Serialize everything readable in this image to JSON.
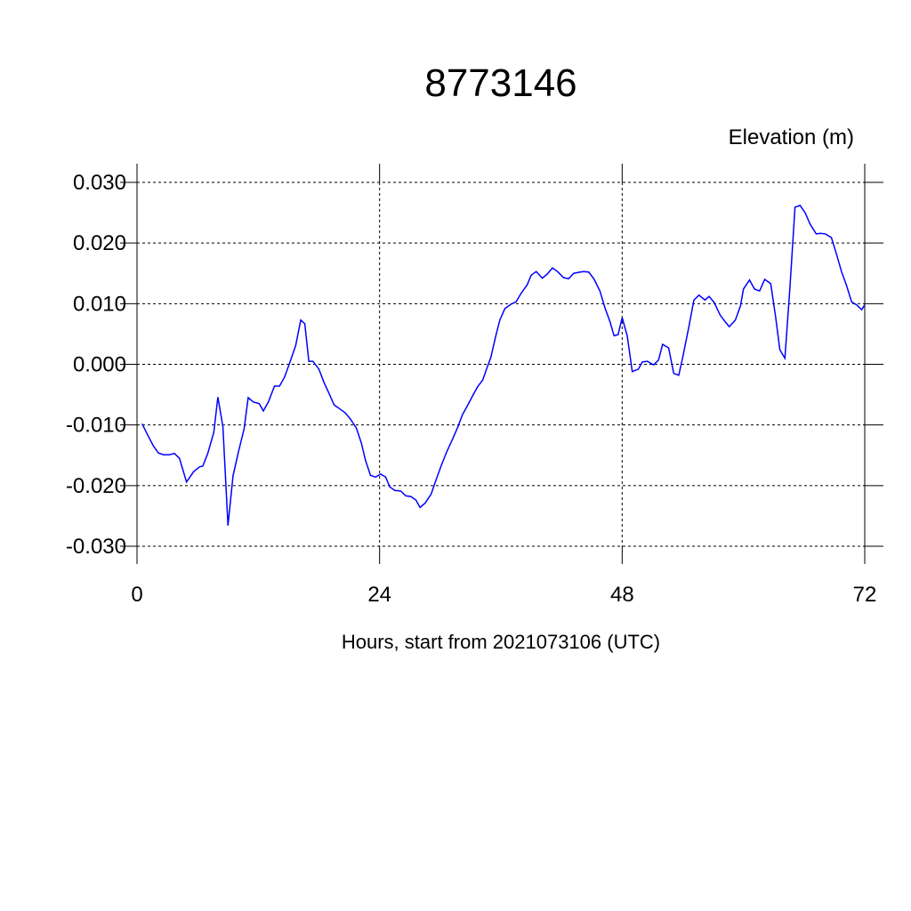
{
  "chart_data": {
    "type": "line",
    "title": "8773146",
    "ylabel": "Elevation (m)",
    "xlabel": "Hours, start from 2021073106 (UTC)",
    "x": [
      0.5,
      1.1,
      1.6,
      2.1,
      2.6,
      3.2,
      3.7,
      4.2,
      4.9,
      5.6,
      6.2,
      6.5,
      7.0,
      7.6,
      8.0,
      8.5,
      9.0,
      9.5,
      10.0,
      10.6,
      11.0,
      11.5,
      12.1,
      12.5,
      13.0,
      13.6,
      14.1,
      14.6,
      15.1,
      15.7,
      16.2,
      16.6,
      17.0,
      17.4,
      18.0,
      18.5,
      19.0,
      19.5,
      20.1,
      20.6,
      21.1,
      21.7,
      22.2,
      22.6,
      23.1,
      23.6,
      24.1,
      24.6,
      25.0,
      25.5,
      26.1,
      26.6,
      27.1,
      27.6,
      28.0,
      28.5,
      29.1,
      29.6,
      30.1,
      30.6,
      31.2,
      31.7,
      32.2,
      32.7,
      33.3,
      33.7,
      34.2,
      34.6,
      35.0,
      35.5,
      35.9,
      36.4,
      37.0,
      37.5,
      38.0,
      38.6,
      39.0,
      39.5,
      40.1,
      40.6,
      41.1,
      41.6,
      42.2,
      42.7,
      43.2,
      43.8,
      44.2,
      44.7,
      45.2,
      45.8,
      46.3,
      46.8,
      47.2,
      47.6,
      48.0,
      48.5,
      49.0,
      49.6,
      50.0,
      50.5,
      51.1,
      51.6,
      52.0,
      52.6,
      53.1,
      53.6,
      54.0,
      54.6,
      55.1,
      55.6,
      56.2,
      56.6,
      57.1,
      57.7,
      58.2,
      58.6,
      59.2,
      59.7,
      60.0,
      60.6,
      61.1,
      61.6,
      62.1,
      62.7,
      63.2,
      63.6,
      64.1,
      64.6,
      65.1,
      65.6,
      66.1,
      66.6,
      67.2,
      67.6,
      68.1,
      68.7,
      69.2,
      69.7,
      70.2,
      70.7,
      71.2,
      71.7,
      72.0
    ],
    "series": [
      {
        "name": "Elevation",
        "color": "#0000ff",
        "values": [
          -0.0098,
          -0.0118,
          -0.0134,
          -0.0146,
          -0.0149,
          -0.0149,
          -0.0147,
          -0.0155,
          -0.0194,
          -0.0177,
          -0.0169,
          -0.0168,
          -0.0147,
          -0.0112,
          -0.0054,
          -0.0103,
          -0.0266,
          -0.0184,
          -0.0147,
          -0.0106,
          -0.0055,
          -0.0062,
          -0.0065,
          -0.0077,
          -0.0062,
          -0.0036,
          -0.0036,
          -0.0021,
          0.0002,
          0.0031,
          0.0073,
          0.0067,
          0.0005,
          0.0005,
          -0.0008,
          -0.003,
          -0.0048,
          -0.0067,
          -0.0074,
          -0.008,
          -0.009,
          -0.0105,
          -0.013,
          -0.0158,
          -0.0183,
          -0.0186,
          -0.0181,
          -0.0186,
          -0.0202,
          -0.0208,
          -0.0209,
          -0.0217,
          -0.0218,
          -0.0224,
          -0.0236,
          -0.0229,
          -0.0214,
          -0.019,
          -0.0167,
          -0.0146,
          -0.0124,
          -0.0105,
          -0.0083,
          -0.0068,
          -0.0049,
          -0.0037,
          -0.0026,
          -0.0007,
          0.0011,
          0.0047,
          0.0073,
          0.0092,
          0.0099,
          0.0103,
          0.0117,
          0.0131,
          0.0147,
          0.0153,
          0.0142,
          0.0149,
          0.0159,
          0.0153,
          0.0143,
          0.0141,
          0.015,
          0.0152,
          0.0153,
          0.0152,
          0.0141,
          0.0121,
          0.0093,
          0.007,
          0.0047,
          0.0049,
          0.0077,
          0.0047,
          -0.0012,
          -0.0008,
          0.0004,
          0.0005,
          -0.0001,
          0.0007,
          0.0033,
          0.0027,
          -0.0015,
          -0.0018,
          0.0012,
          0.0062,
          0.0106,
          0.0114,
          0.0106,
          0.0112,
          0.0102,
          0.0081,
          0.007,
          0.0062,
          0.0073,
          0.0096,
          0.0124,
          0.0139,
          0.0124,
          0.0121,
          0.014,
          0.0133,
          0.0076,
          0.0024,
          0.001,
          0.0127,
          0.0259,
          0.0262,
          0.025,
          0.0231,
          0.0215,
          0.0216,
          0.0215,
          0.0209,
          0.0182,
          0.0153,
          0.013,
          0.0103,
          0.0098,
          0.009,
          0.0098
        ]
      }
    ],
    "xlim": [
      0,
      72
    ],
    "xticks": [
      0,
      24,
      48,
      72
    ],
    "ylim": [
      -0.03,
      0.03
    ],
    "yticks": [
      {
        "value": -0.03,
        "label": "-0.030"
      },
      {
        "value": -0.02,
        "label": "-0.020"
      },
      {
        "value": -0.01,
        "label": "-0.010"
      },
      {
        "value": 0,
        "label": "0.000"
      },
      {
        "value": 0.01,
        "label": "0.010"
      },
      {
        "value": 0.02,
        "label": "0.020"
      },
      {
        "value": 0.03,
        "label": "0.030"
      }
    ],
    "grid": true
  }
}
